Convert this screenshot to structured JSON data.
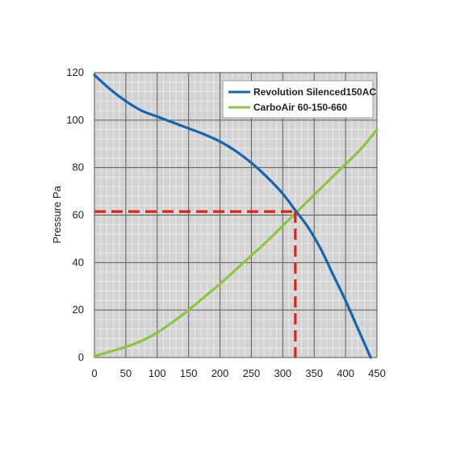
{
  "chart_data": {
    "type": "line",
    "ylabel": "Pressure Pa",
    "xlabel": "",
    "xlim": [
      0,
      450
    ],
    "ylim": [
      0,
      120
    ],
    "x_ticks": [
      0,
      50,
      100,
      150,
      200,
      250,
      300,
      350,
      400,
      450
    ],
    "y_ticks": [
      0,
      20,
      40,
      60,
      80,
      100,
      120
    ],
    "grid": true,
    "minor_grid": true,
    "legend_position": "top-right",
    "series": [
      {
        "name": "Revolution Silenced150AC",
        "color": "#1565b0",
        "points": [
          [
            0,
            119
          ],
          [
            25,
            113
          ],
          [
            50,
            108
          ],
          [
            75,
            104
          ],
          [
            100,
            101.5
          ],
          [
            125,
            99
          ],
          [
            150,
            96.5
          ],
          [
            175,
            94
          ],
          [
            200,
            91
          ],
          [
            225,
            87
          ],
          [
            250,
            82
          ],
          [
            275,
            76
          ],
          [
            300,
            69
          ],
          [
            320,
            62
          ],
          [
            340,
            55
          ],
          [
            360,
            46
          ],
          [
            380,
            35
          ],
          [
            400,
            24
          ],
          [
            420,
            12
          ],
          [
            440,
            0
          ]
        ]
      },
      {
        "name": "CarboAir 60-150-660",
        "color": "#8cc63f",
        "points": [
          [
            0,
            0.5
          ],
          [
            25,
            2.5
          ],
          [
            50,
            4.5
          ],
          [
            75,
            7
          ],
          [
            100,
            10.5
          ],
          [
            125,
            15
          ],
          [
            150,
            20
          ],
          [
            175,
            25.5
          ],
          [
            200,
            31
          ],
          [
            225,
            37
          ],
          [
            250,
            43
          ],
          [
            275,
            49
          ],
          [
            300,
            55.5
          ],
          [
            325,
            62
          ],
          [
            350,
            68.5
          ],
          [
            375,
            75
          ],
          [
            400,
            81.5
          ],
          [
            425,
            88
          ],
          [
            450,
            96
          ]
        ]
      }
    ],
    "operating_point": {
      "x": 320,
      "y": 61.5,
      "color": "#e0201b"
    }
  }
}
